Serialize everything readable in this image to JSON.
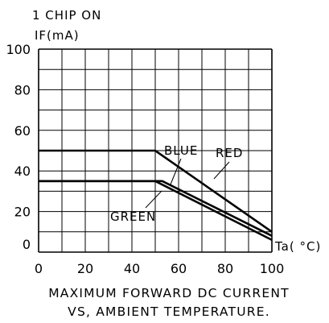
{
  "chart_data": {
    "type": "line",
    "title_lines": [
      "1 CHIP ON"
    ],
    "ylabel": "IF(mA)",
    "xlabel": "Ta( °C)",
    "caption_lines": [
      "MAXIMUM FORWARD DC CURRENT",
      "VS, AMBIENT TEMPERATURE."
    ],
    "xlim": [
      0,
      100
    ],
    "ylim": [
      0,
      100
    ],
    "xticks": [
      0,
      20,
      40,
      60,
      80,
      100
    ],
    "yticks": [
      0,
      20,
      40,
      60,
      80,
      100
    ],
    "grid": true,
    "series": [
      {
        "name": "RED",
        "x": [
          0,
          50,
          100
        ],
        "y": [
          50,
          50,
          10
        ]
      },
      {
        "name": "BLUE",
        "x": [
          0,
          53,
          100
        ],
        "y": [
          35,
          35,
          8
        ]
      },
      {
        "name": "GREEN",
        "x": [
          0,
          50,
          100
        ],
        "y": [
          35,
          35,
          6
        ]
      }
    ]
  }
}
